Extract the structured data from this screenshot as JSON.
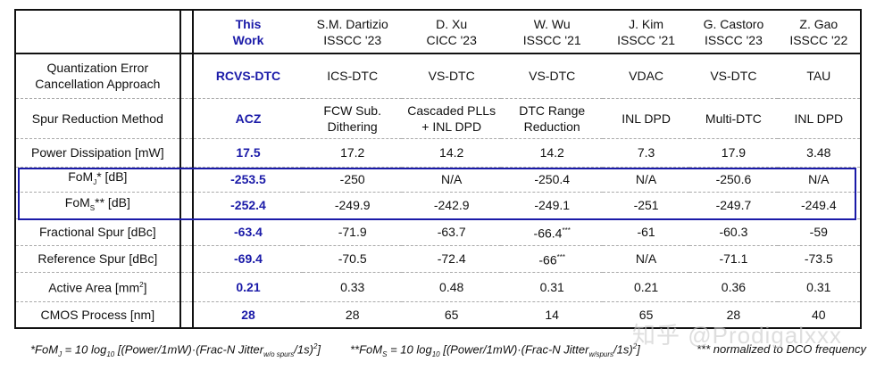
{
  "header": {
    "row_label": "",
    "this_work": [
      "This",
      "Work"
    ],
    "refs": [
      [
        "S.M. Dartizio",
        "ISSCC '23"
      ],
      [
        "D. Xu",
        "CICC '23"
      ],
      [
        "W. Wu",
        "ISSCC '21"
      ],
      [
        "J. Kim",
        "ISSCC '21"
      ],
      [
        "G. Castoro",
        "ISSCC '23"
      ],
      [
        "Z. Gao",
        "ISSCC '22"
      ]
    ]
  },
  "rows": [
    {
      "label": [
        "Quantization Error",
        "Cancellation Approach"
      ],
      "this": "RCVS-DTC",
      "vals": [
        "ICS-DTC",
        "VS-DTC",
        "VS-DTC",
        "VDAC",
        "VS-DTC",
        "TAU"
      ]
    },
    {
      "label": [
        "Spur Reduction Method"
      ],
      "this": "ACZ",
      "vals": [
        "FCW Sub. Dithering",
        "Cascaded PLLs + INL DPD",
        "DTC Range Reduction",
        "INL DPD",
        "Multi-DTC",
        "INL DPD"
      ]
    },
    {
      "label": [
        "Power Dissipation [mW]"
      ],
      "this": "17.5",
      "vals": [
        "17.2",
        "14.2",
        "14.2",
        "7.3",
        "17.9",
        "3.48"
      ]
    },
    {
      "label": [
        "FoM_J* [dB]"
      ],
      "this": "-253.5",
      "vals": [
        "-250",
        "N/A",
        "-250.4",
        "N/A",
        "-250.6",
        "N/A"
      ]
    },
    {
      "label": [
        "FoM_S** [dB]"
      ],
      "this": "-252.4",
      "vals": [
        "-249.9",
        "-242.9",
        "-249.1",
        "-251",
        "-249.7",
        "-249.4"
      ]
    },
    {
      "label": [
        "Fractional Spur [dBc]"
      ],
      "this": "-63.4",
      "vals": [
        "-71.9",
        "-63.7",
        "-66.4***",
        "-61",
        "-60.3",
        "-59"
      ]
    },
    {
      "label": [
        "Reference Spur [dBc]"
      ],
      "this": "-69.4",
      "vals": [
        "-70.5",
        "-72.4",
        "-66***",
        "N/A",
        "-71.1",
        "-73.5"
      ]
    },
    {
      "label": [
        "Active Area [mm2]"
      ],
      "this": "0.21",
      "vals": [
        "0.33",
        "0.48",
        "0.31",
        "0.21",
        "0.36",
        "0.31"
      ]
    },
    {
      "label": [
        "CMOS Process [nm]"
      ],
      "this": "28",
      "vals": [
        "28",
        "65",
        "14",
        "65",
        "28",
        "40"
      ]
    }
  ],
  "highlight_color": "#1a1aa8",
  "footnotes": {
    "fomj": "*FoM_J = 10 log10 [(Power/1mW)·(Frac-N Jitter_w/o spurs/1s)^2]",
    "foms": "**FoM_S = 10 log10 [(Power/1mW)·(Frac-N Jitter_w/spurs/1s)^2]",
    "norm": "*** normalized to DCO frequency"
  },
  "watermark": "知乎 @Prodigalxxx"
}
